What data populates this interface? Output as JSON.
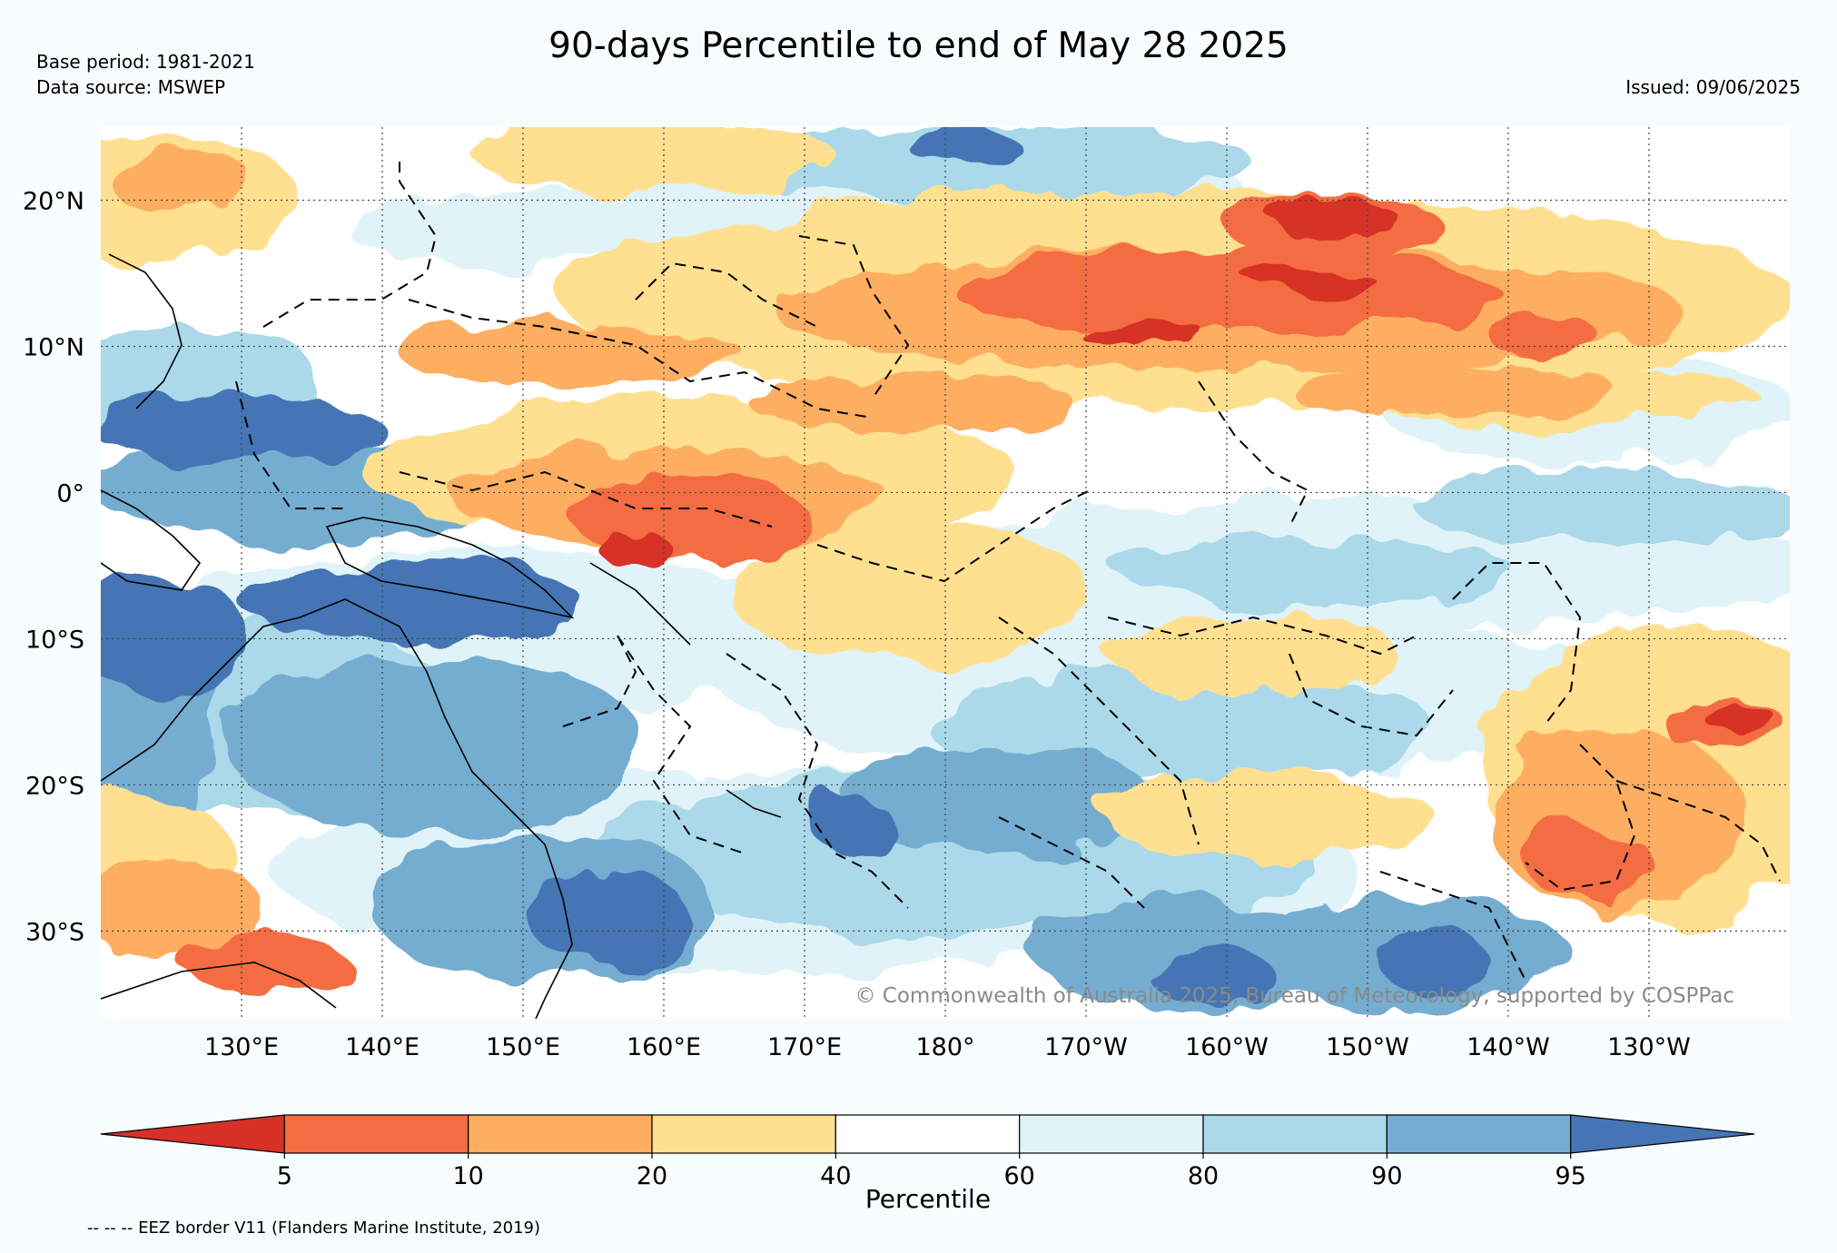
{
  "header": {
    "title": "90-days Percentile to end of May 28 2025",
    "base_period": "Base period: 1981-2021",
    "data_source": "Data source: MSWEP",
    "issued": "Issued: 09/06/2025"
  },
  "map": {
    "lon_range": [
      120,
      240
    ],
    "lat_range": [
      -36,
      25
    ],
    "lat_labels": [
      {
        "lat": 20,
        "label": "20°N"
      },
      {
        "lat": 10,
        "label": "10°N"
      },
      {
        "lat": 0,
        "label": "0°"
      },
      {
        "lat": -10,
        "label": "10°S"
      },
      {
        "lat": -20,
        "label": "20°S"
      },
      {
        "lat": -30,
        "label": "30°S"
      }
    ],
    "lon_labels": [
      {
        "lon": 130,
        "label": "130°E"
      },
      {
        "lon": 140,
        "label": "140°E"
      },
      {
        "lon": 150,
        "label": "150°E"
      },
      {
        "lon": 160,
        "label": "160°E"
      },
      {
        "lon": 170,
        "label": "170°E"
      },
      {
        "lon": 180,
        "label": "180°"
      },
      {
        "lon": 190,
        "label": "170°W"
      },
      {
        "lon": 200,
        "label": "160°W"
      },
      {
        "lon": 210,
        "label": "150°W"
      },
      {
        "lon": 220,
        "label": "140°W"
      },
      {
        "lon": 230,
        "label": "130°W"
      }
    ],
    "gridlines": true,
    "copyright": "© Commonwealth of Australia 2025, Bureau of Meteorology, supported by COSPPac"
  },
  "colorbar": {
    "label": "Percentile",
    "extend": "both",
    "bins": [
      {
        "color": "#d73027"
      },
      {
        "color": "#f46d43"
      },
      {
        "color": "#fdae61"
      },
      {
        "color": "#fee090"
      },
      {
        "color": "#ffffff"
      },
      {
        "color": "#e0f3f8"
      },
      {
        "color": "#abd9e9"
      },
      {
        "color": "#74add1"
      },
      {
        "color": "#4575b4"
      }
    ],
    "tick_labels": [
      "5",
      "10",
      "20",
      "40",
      "60",
      "80",
      "90",
      "95"
    ]
  },
  "footnote": "-- -- -- EEZ border V11 (Flanders Marine Institute, 2019)"
}
